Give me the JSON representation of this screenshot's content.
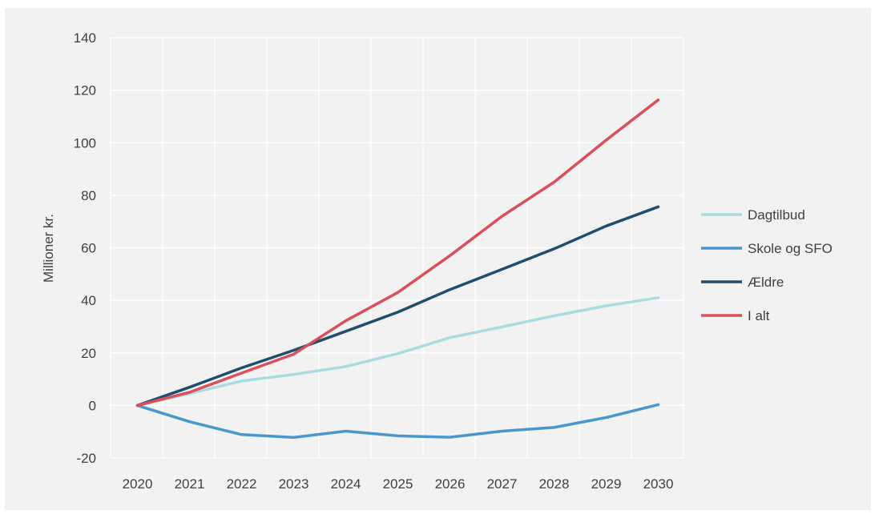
{
  "chart_data": {
    "type": "line",
    "ylabel": "Millioner kr.",
    "xlabel": "",
    "ylim": [
      -20,
      140
    ],
    "yticks": [
      -20,
      0,
      20,
      40,
      60,
      80,
      100,
      120,
      140
    ],
    "x": [
      "2020",
      "2021",
      "2022",
      "2023",
      "2024",
      "2025",
      "2026",
      "2027",
      "2028",
      "2029",
      "2030"
    ],
    "grid": true,
    "legend_position": "right",
    "series": [
      {
        "name": "Dagtilbud",
        "color": "#a8dce3",
        "values": [
          0,
          4.5,
          9.3,
          11.8,
          14.8,
          19.7,
          25.8,
          29.9,
          34.1,
          37.9,
          41.0
        ]
      },
      {
        "name": "Skole og SFO",
        "color": "#4a97ce",
        "values": [
          0,
          -6.2,
          -11.1,
          -12.2,
          -9.8,
          -11.6,
          -12.1,
          -9.8,
          -8.4,
          -4.6,
          0.3
        ]
      },
      {
        "name": "Ældre",
        "color": "#1f4e6e",
        "values": [
          0,
          6.9,
          14.3,
          21.0,
          28.2,
          35.5,
          44.1,
          51.8,
          59.6,
          68.3,
          75.6
        ]
      },
      {
        "name": "I alt",
        "color": "#d9505a",
        "values": [
          0,
          5.0,
          12.3,
          19.5,
          32.2,
          43.0,
          57.0,
          72.0,
          85.0,
          101.0,
          116.3
        ]
      }
    ]
  }
}
